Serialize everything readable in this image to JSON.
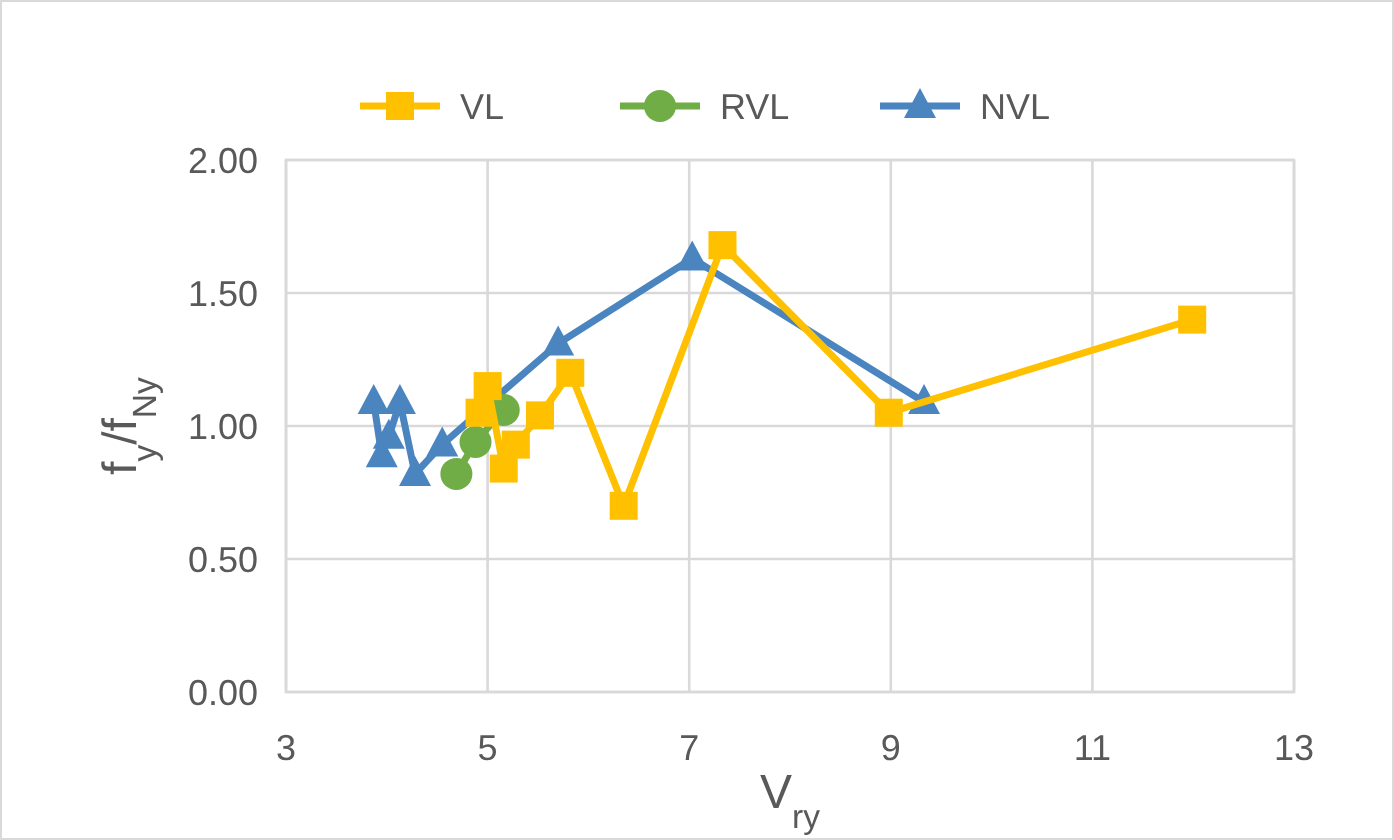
{
  "chart_data": {
    "type": "line",
    "xlabel": "V$_{ry}$",
    "ylabel": "f$_{y}$/f$_{Ny}$",
    "xlim": [
      3,
      13
    ],
    "xticks": [
      3,
      5,
      7,
      9,
      11,
      13
    ],
    "ylim": [
      0,
      2
    ],
    "yticks": [
      {
        "value": 0,
        "label": "0.00"
      },
      {
        "value": 0.5,
        "label": "0.50"
      },
      {
        "value": 1,
        "label": "1.00"
      },
      {
        "value": 1.5,
        "label": "1.50"
      },
      {
        "value": 2,
        "label": "2.00"
      }
    ],
    "grid": true,
    "legend": "top",
    "series": [
      {
        "name": "VL",
        "color": "#ffc000",
        "marker": "square",
        "x": [
          4.92,
          5.0,
          5.16,
          5.28,
          5.52,
          5.82,
          6.35,
          7.33,
          8.98,
          11.99
        ],
        "values": [
          1.05,
          1.15,
          0.84,
          0.93,
          1.04,
          1.2,
          0.7,
          1.68,
          1.05,
          1.4
        ]
      },
      {
        "name": "RVL",
        "color": "#70ad47",
        "marker": "circle",
        "x": [
          4.69,
          4.88,
          5.16
        ],
        "values": [
          0.82,
          0.94,
          1.06
        ]
      },
      {
        "name": "NVL",
        "color": "#4a85c0",
        "marker": "triangle",
        "x": [
          3.87,
          3.95,
          4.02,
          4.13,
          4.28,
          4.55,
          4.97,
          5.7,
          7.03,
          9.33
        ],
        "values": [
          1.09,
          0.89,
          0.96,
          1.09,
          0.82,
          0.93,
          1.07,
          1.31,
          1.63,
          1.09
        ]
      }
    ]
  }
}
